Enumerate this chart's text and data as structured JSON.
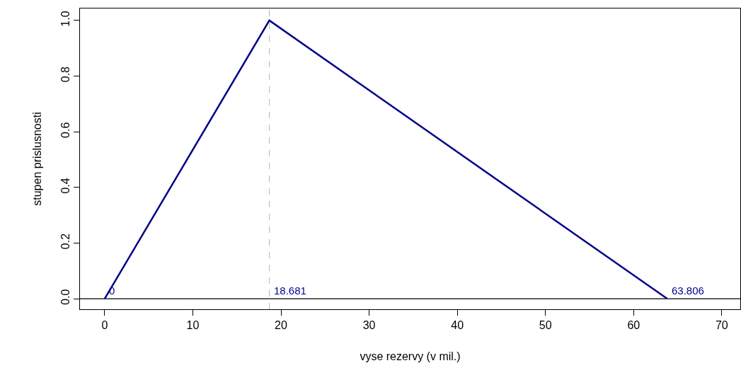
{
  "chart_data": {
    "type": "line",
    "xlabel": "vyse rezervy (v mil.)",
    "ylabel": "stupen prislusnosti",
    "x": [
      0,
      18.681,
      63.806
    ],
    "series": [
      {
        "color": "#00008b",
        "values": [
          0,
          1,
          0
        ]
      }
    ],
    "xlim": [
      -2.8,
      72.1
    ],
    "xticks": [
      0,
      10,
      20,
      30,
      40,
      50,
      60,
      70
    ],
    "ylim": [
      -0.038,
      1.043
    ],
    "yticks": [
      {
        "value": 0,
        "label": "0.0"
      },
      {
        "value": 0.2,
        "label": "0.2"
      },
      {
        "value": 0.4,
        "label": "0.4"
      },
      {
        "value": 0.6,
        "label": "0.6"
      },
      {
        "value": 0.8,
        "label": "0.8"
      },
      {
        "value": 1,
        "label": "1.0"
      }
    ],
    "ref_lines": [
      {
        "axis": "x",
        "value": 18.681,
        "color": "#bebebe",
        "line_style": "dashed"
      },
      {
        "axis": "y",
        "value": 0,
        "color": "#000000",
        "line_style": "solid"
      }
    ],
    "annotations": [
      {
        "text": "0",
        "x": 0,
        "y": 0
      },
      {
        "text": "18.681",
        "x": 18.681,
        "y": 0
      },
      {
        "text": "63.806",
        "x": 63.806,
        "y": 0
      }
    ],
    "grid": false,
    "legend": false,
    "marker": "none",
    "line_style": "solid"
  }
}
